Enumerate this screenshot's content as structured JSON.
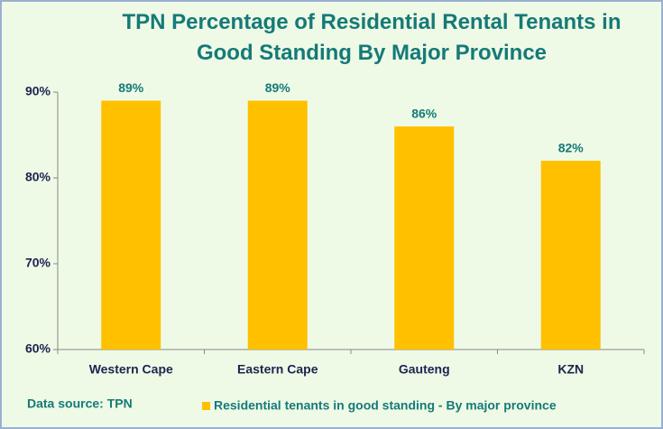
{
  "chart_data": {
    "type": "bar",
    "title": "TPN Percentage of Residential Rental Tenants in Good Standing By Major Province",
    "categories": [
      "Western Cape",
      "Eastern Cape",
      "Gauteng",
      "KZN"
    ],
    "series": [
      {
        "name": "Residential tenants in good standing - By major province",
        "color": "#ffc000",
        "values": [
          89,
          89,
          86,
          82
        ],
        "value_labels": [
          "89%",
          "89%",
          "86%",
          "82%"
        ]
      }
    ],
    "ylim": [
      60,
      90
    ],
    "yticks": [
      {
        "value": 60,
        "label": "60%"
      },
      {
        "value": 70,
        "label": "70%"
      },
      {
        "value": 80,
        "label": "80%"
      },
      {
        "value": 90,
        "label": "90%"
      }
    ],
    "annotations": [
      "Data source: TPN"
    ],
    "legend": "bottom"
  }
}
